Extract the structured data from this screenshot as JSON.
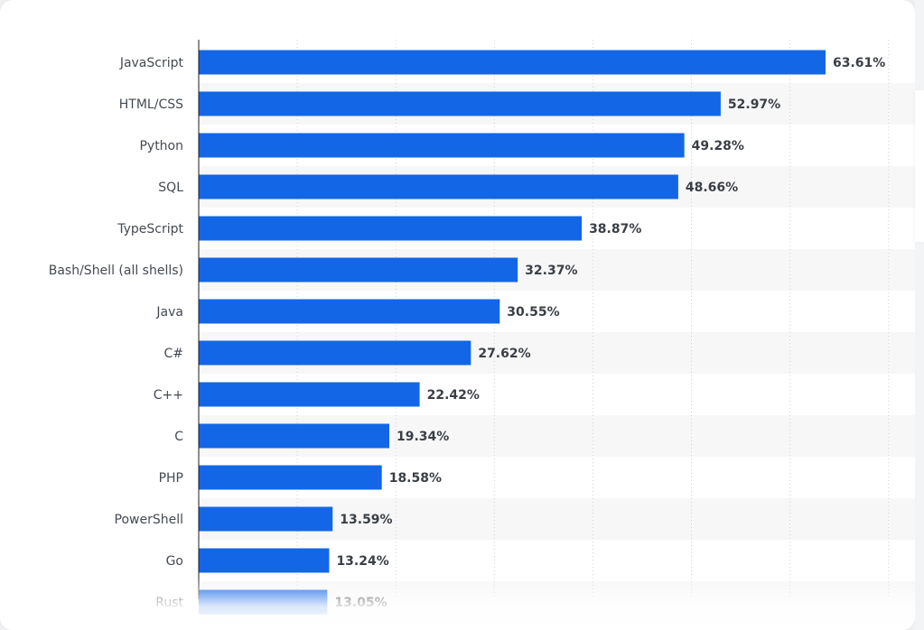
{
  "chart_data": {
    "type": "bar",
    "orientation": "horizontal",
    "categories": [
      "JavaScript",
      "HTML/CSS",
      "Python",
      "SQL",
      "TypeScript",
      "Bash/Shell (all shells)",
      "Java",
      "C#",
      "C++",
      "C",
      "PHP",
      "PowerShell",
      "Go",
      "Rust"
    ],
    "values": [
      63.61,
      52.97,
      49.28,
      48.66,
      38.87,
      32.37,
      30.55,
      27.62,
      22.42,
      19.34,
      18.58,
      13.59,
      13.24,
      13.05
    ],
    "value_labels": [
      "63.61%",
      "52.97%",
      "49.28%",
      "48.66%",
      "38.87%",
      "32.37%",
      "30.55%",
      "27.62%",
      "22.42%",
      "19.34%",
      "18.58%",
      "13.59%",
      "13.24%",
      "13.05%"
    ],
    "xlim": [
      0,
      70
    ],
    "grid": true,
    "colors": {
      "bar": "#1366e6",
      "band": "#f7f7f7",
      "grid": "#cfd2d6"
    }
  }
}
